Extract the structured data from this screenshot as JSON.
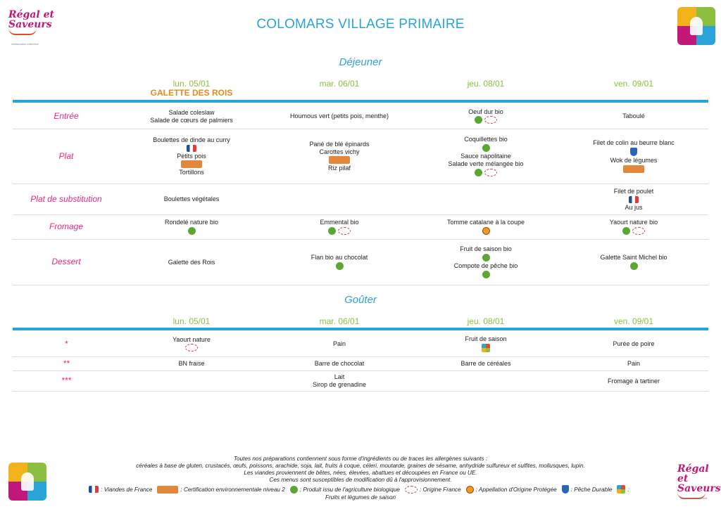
{
  "title": "COLOMARS VILLAGE PRIMAIRE",
  "brand": {
    "line1": "Régal et",
    "line2": "Saveurs",
    "tagline": "restauration collective"
  },
  "colors": {
    "accent": "#2aa3d8",
    "day": "#8cbf3f",
    "label": "#e5278a",
    "special": "#e58a1f"
  },
  "dejeuner": {
    "title": "Déjeuner",
    "days": [
      "lun. 05/01",
      "mar. 06/01",
      "jeu. 08/01",
      "ven. 09/01"
    ],
    "special": "GALETTE DES ROIS",
    "rows": [
      {
        "label": "Entrée",
        "cells": [
          [
            {
              "t": "Salade coleslaw"
            },
            {
              "t": "Salade de cœurs de palmiers"
            }
          ],
          [
            {
              "t": "Houmous vert (petits pois, menthe)"
            }
          ],
          [
            {
              "t": "Oeuf dur bio"
            },
            {
              "icons": [
                "bio-icon",
                "origine-france-icon"
              ]
            }
          ],
          [
            {
              "t": "Taboulé"
            }
          ]
        ]
      },
      {
        "label": "Plat",
        "cells": [
          [
            {
              "t": "Boulettes de dinde au curry"
            },
            {
              "icons": [
                "viandes-france-icon"
              ]
            },
            {
              "t": "Petits pois"
            },
            {
              "icons": [
                "hve-icon"
              ]
            },
            {
              "t": "Tortillons"
            }
          ],
          [
            {
              "t": "Pané de blé épinards"
            },
            {
              "t": "Carottes vichy"
            },
            {
              "icons": [
                "hve-icon"
              ]
            },
            {
              "t": "Riz pilaf"
            }
          ],
          [
            {
              "t": "Coquillettes bio"
            },
            {
              "icons": [
                "bio-icon"
              ]
            },
            {
              "t": "Sauce napolitaine"
            },
            {
              "t": "Salade verte mélangée bio"
            },
            {
              "icons": [
                "bio-icon",
                "origine-france-icon"
              ]
            }
          ],
          [
            {
              "t": "Filet de colin au beurre blanc"
            },
            {
              "icons": [
                "peche-durable-icon"
              ]
            },
            {
              "t": "Wok de légumes"
            },
            {
              "icons": [
                "hve-icon"
              ]
            }
          ]
        ]
      },
      {
        "label": "Plat de substitution",
        "cells": [
          [
            {
              "t": "Boulettes végétales"
            }
          ],
          [],
          [],
          [
            {
              "t": "Filet de poulet"
            },
            {
              "icons": [
                "viandes-france-icon"
              ]
            },
            {
              "t": "Au jus"
            }
          ]
        ]
      },
      {
        "label": "Fromage",
        "cells": [
          [
            {
              "t": "Rondelé nature bio"
            },
            {
              "icons": [
                "bio-icon"
              ]
            }
          ],
          [
            {
              "t": "Emmental bio"
            },
            {
              "icons": [
                "bio-icon",
                "origine-france-icon"
              ]
            }
          ],
          [
            {
              "t": "Tomme catalane à la coupe"
            },
            {
              "icons": [
                "aop-icon"
              ]
            }
          ],
          [
            {
              "t": "Yaourt nature bio"
            },
            {
              "icons": [
                "bio-icon",
                "origine-france-icon"
              ]
            }
          ]
        ]
      },
      {
        "label": "Dessert",
        "cells": [
          [
            {
              "t": "Galette des Rois"
            }
          ],
          [
            {
              "t": "Flan bio au chocolat"
            },
            {
              "icons": [
                "bio-icon"
              ]
            }
          ],
          [
            {
              "t": "Fruit de saison bio"
            },
            {
              "icons": [
                "bio-icon"
              ]
            },
            {
              "t": "Compote de pêche bio"
            },
            {
              "icons": [
                "bio-icon"
              ]
            }
          ],
          [
            {
              "t": "Galette Saint Michel bio"
            },
            {
              "icons": [
                "bio-icon"
              ]
            }
          ]
        ]
      }
    ]
  },
  "gouter": {
    "title": "Goûter",
    "days": [
      "lun. 05/01",
      "mar. 06/01",
      "jeu. 08/01",
      "ven. 09/01"
    ],
    "rows": [
      {
        "label": "*",
        "cells": [
          [
            {
              "t": "Yaourt nature"
            },
            {
              "icons": [
                "origine-france-icon"
              ]
            }
          ],
          [
            {
              "t": "Pain"
            }
          ],
          [
            {
              "t": "Fruit de saison"
            },
            {
              "icons": [
                "fruits-legumes-icon"
              ]
            }
          ],
          [
            {
              "t": "Purée de poire"
            }
          ]
        ]
      },
      {
        "label": "**",
        "cells": [
          [
            {
              "t": "BN fraise"
            }
          ],
          [
            {
              "t": "Barre de chocolat"
            }
          ],
          [
            {
              "t": "Barre de céréales"
            }
          ],
          [
            {
              "t": "Pain"
            }
          ]
        ]
      },
      {
        "label": "***",
        "cells": [
          [],
          [
            {
              "t": "Lait"
            },
            {
              "t": "Sirop de grenadine"
            }
          ],
          [],
          [
            {
              "t": "Fromage à tartiner"
            }
          ]
        ]
      }
    ]
  },
  "footer": {
    "lines": [
      "Toutes nos préparations contiennent sous forme d'ingrédients ou de traces les allergènes suivants :",
      "céréales à base de gluten, crustacés, œufs, poissons, arachide, soja, lait, fruits à coque, céleri, moutarde, graines de sésame, anhydride sulfureux et sulfites, mollusques, lupin.",
      "Les viandes proviennent de bêtes, nées, élevées, abattues et découpées en France ou UE.",
      "Ces menus sont susceptibles de modification dû à l'approvisionnement."
    ],
    "legend": [
      {
        "icon": "viandes-france-icon",
        "label": ": Viandes de France"
      },
      {
        "icon": "hve-icon",
        "label": ": Certification environnementale niveau 2"
      },
      {
        "icon": "bio-icon",
        "label": ": Produit issu de l'agriculture biologique"
      },
      {
        "icon": "origine-france-icon",
        "label": ": Origine France"
      },
      {
        "icon": "aop-icon",
        "label": ": Appellation d'Origine Protégée"
      },
      {
        "icon": "peche-durable-icon",
        "label": ": Pêche Durable"
      },
      {
        "icon": "fruits-legumes-icon",
        "label": ":"
      }
    ],
    "legend_tail": "Fruits et légumes de saison"
  }
}
